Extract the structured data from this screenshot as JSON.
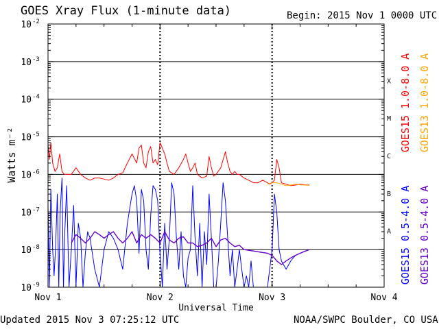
{
  "header": {
    "title": "GOES Xray Flux (1-minute data)",
    "begin": "Begin:  2015 Nov 1 0000 UTC"
  },
  "footer": {
    "updated": "Updated 2015 Nov  3 07:25:12 UTC",
    "credit": "NOAA/SWPC Boulder, CO USA"
  },
  "chart_data": {
    "type": "line",
    "title": "GOES Xray Flux (1-minute data)",
    "xlabel": "Universal Time",
    "ylabel": "Watts m⁻²",
    "yscale": "log",
    "ylim": [
      1e-09,
      0.01
    ],
    "xlim": [
      0,
      72
    ],
    "x_unit": "hours since 2015 Nov 1 0000 UTC",
    "x_ticks": [
      {
        "x": 0,
        "label": "Nov 1"
      },
      {
        "x": 24,
        "label": "Nov 2"
      },
      {
        "x": 48,
        "label": "Nov 3"
      },
      {
        "x": 72,
        "label": "Nov 4"
      }
    ],
    "y_ticks": [
      {
        "exp": -9,
        "label": "10",
        "sup": "-9"
      },
      {
        "exp": -8,
        "label": "10",
        "sup": "-8"
      },
      {
        "exp": -7,
        "label": "10",
        "sup": "-7"
      },
      {
        "exp": -6,
        "label": "10",
        "sup": "-6"
      },
      {
        "exp": -5,
        "label": "10",
        "sup": "-5"
      },
      {
        "exp": -4,
        "label": "10",
        "sup": "-4"
      },
      {
        "exp": -3,
        "label": "10",
        "sup": "-3"
      },
      {
        "exp": -2,
        "label": "10",
        "sup": "-2"
      }
    ],
    "flare_classes": [
      {
        "label": "A",
        "value": 3.16e-08
      },
      {
        "label": "B",
        "value": 3.16e-07
      },
      {
        "label": "C",
        "value": 3.16e-06
      },
      {
        "label": "M",
        "value": 3.16e-05
      },
      {
        "label": "X",
        "value": 0.000316
      }
    ],
    "grid": "horizontal at each decade; dotted vertical at day boundaries",
    "legend_placement": "right, vertical",
    "series": [
      {
        "name": "GOES15 1.0-8.0 A",
        "color": "#ff0000",
        "width": 1,
        "x": [
          0,
          0.3,
          0.6,
          1,
          1.5,
          2,
          2.5,
          3,
          3.5,
          4,
          5,
          6,
          7,
          8,
          9,
          10,
          11,
          12,
          13,
          14,
          15,
          16,
          17,
          18,
          19,
          19.5,
          20,
          20.5,
          21,
          21.5,
          22,
          22.5,
          23,
          23.5,
          24,
          24.5,
          25,
          25.5,
          26,
          27,
          28,
          29,
          29.5,
          30,
          30.5,
          31,
          31.5,
          32,
          33,
          34,
          34.5,
          35,
          35.5,
          36,
          37,
          38,
          38.5,
          39,
          39.5,
          40,
          40.5,
          41,
          42,
          43,
          44,
          45,
          46,
          47,
          47.5,
          48,
          48.5,
          49,
          49.5,
          50,
          51,
          52,
          53,
          54,
          55,
          56
        ],
        "y": [
          6e-06,
          2.5e-06,
          7e-06,
          2e-06,
          1.2e-06,
          1.5e-06,
          3.5e-06,
          1.2e-06,
          1e-06,
          1e-06,
          1e-06,
          1.5e-06,
          1e-06,
          8e-07,
          7e-07,
          8e-07,
          8e-07,
          7.5e-07,
          7e-07,
          8e-07,
          1e-06,
          1.1e-06,
          2e-06,
          3.5e-06,
          2e-06,
          5e-06,
          6e-06,
          2e-06,
          1.5e-06,
          4e-06,
          5.5e-06,
          2e-06,
          2.5e-06,
          1.8e-06,
          7e-06,
          5e-06,
          3.5e-06,
          2e-06,
          1.2e-06,
          1e-06,
          1.5e-06,
          2.5e-06,
          3.5e-06,
          2e-06,
          1.2e-06,
          1.5e-06,
          2e-06,
          1e-06,
          8e-07,
          9e-07,
          3e-06,
          1.5e-06,
          9e-07,
          1e-06,
          1.5e-06,
          4e-06,
          2e-06,
          1.2e-06,
          1e-06,
          1.2e-06,
          1e-06,
          1e-06,
          8e-07,
          7e-07,
          6e-07,
          6e-07,
          7e-07,
          6e-07,
          5.5e-07,
          6e-07,
          7e-07,
          2.5e-06,
          1.5e-06,
          6e-07,
          5.5e-07,
          5e-07,
          5.2e-07,
          5.5e-07,
          5.3e-07,
          5.2e-07
        ]
      },
      {
        "name": "GOES13 1.0-8.0 A",
        "color": "#ffa500",
        "width": 1,
        "x": [
          47,
          48,
          49,
          50,
          51,
          52,
          53,
          54,
          55,
          56
        ],
        "y": [
          5.5e-07,
          6e-07,
          6e-07,
          5.5e-07,
          5e-07,
          5.2e-07,
          5.5e-07,
          5.3e-07,
          5.2e-07,
          5.1e-07
        ]
      },
      {
        "name": "GOES15 0.5-4.0 A",
        "color": "#0000ff",
        "width": 1,
        "x": [
          0,
          0.3,
          0.6,
          1,
          1.3,
          1.6,
          2,
          2.3,
          2.6,
          3,
          3.3,
          3.6,
          4,
          4.5,
          5,
          5.5,
          6,
          6.5,
          7,
          7.5,
          8,
          8.5,
          9,
          10,
          11,
          12,
          13,
          14,
          15,
          16,
          17,
          18,
          18.5,
          19,
          19.5,
          20,
          20.5,
          21,
          21.5,
          22,
          22.5,
          23,
          23.5,
          24,
          24.5,
          25,
          25.5,
          26,
          26.5,
          27,
          27.5,
          28,
          28.5,
          29,
          29.5,
          30,
          30.5,
          31,
          31.5,
          32,
          32.5,
          33,
          33.5,
          34,
          34.5,
          35,
          35.5,
          36,
          36.5,
          37,
          37.5,
          38,
          38.5,
          39,
          39.5,
          40,
          40.5,
          41,
          41.5,
          42,
          42.5,
          43,
          43.5,
          44,
          45,
          46,
          47,
          48,
          48.5,
          49,
          49.5,
          50,
          51,
          52,
          53,
          54,
          55,
          56
        ],
        "y": [
          1.5e-07,
          1e-09,
          4e-07,
          1e-08,
          2e-09,
          1e-08,
          3e-07,
          1e-09,
          1e-07,
          8e-07,
          1e-09,
          3e-08,
          5e-07,
          1e-09,
          1e-08,
          1.5e-07,
          1e-09,
          5e-08,
          2e-08,
          1e-09,
          8e-09,
          3e-08,
          2e-08,
          3e-09,
          1e-09,
          1e-08,
          3e-08,
          2e-08,
          1e-08,
          3e-09,
          5e-08,
          3e-07,
          5e-07,
          2e-07,
          8e-09,
          4e-07,
          2e-07,
          1e-08,
          3e-09,
          8e-08,
          5e-07,
          4e-07,
          2e-07,
          8e-09,
          1e-09,
          5e-08,
          3e-09,
          2e-08,
          6e-07,
          3e-07,
          2e-08,
          3e-09,
          3e-08,
          2e-09,
          1e-09,
          6e-09,
          1e-08,
          5e-07,
          2e-08,
          2e-09,
          5e-08,
          1e-09,
          3e-08,
          4e-09,
          3e-07,
          2e-08,
          1e-09,
          1e-09,
          5e-09,
          5e-08,
          6e-07,
          2e-07,
          2e-08,
          2e-09,
          1e-08,
          1e-09,
          3e-09,
          1e-08,
          3e-09,
          1e-09,
          2e-09,
          1e-09,
          5e-09,
          1e-09,
          1e-09,
          1e-09,
          1e-09,
          1e-08,
          3e-07,
          1e-07,
          1e-08,
          5e-09,
          3e-09,
          5e-09,
          7e-09,
          8e-09,
          9e-09,
          1e-08
        ]
      },
      {
        "name": "GOES13 0.5-4.0 A",
        "color": "#6600cc",
        "width": 1.4,
        "x": [
          5,
          6,
          7,
          8,
          9,
          10,
          11,
          12,
          13,
          14,
          15,
          16,
          17,
          18,
          19,
          20,
          21,
          22,
          23,
          24,
          25,
          26,
          27,
          28,
          29,
          30,
          31,
          32,
          33,
          34,
          35,
          36,
          37,
          38,
          39,
          40,
          41,
          42,
          47,
          48,
          49,
          50,
          51,
          52,
          53,
          54,
          55,
          56
        ],
        "y": [
          1.5e-08,
          2.5e-08,
          2e-08,
          1.5e-08,
          2e-08,
          3e-08,
          2.5e-08,
          2e-08,
          2.5e-08,
          3e-08,
          2e-08,
          1.5e-08,
          2e-08,
          3e-08,
          1.5e-08,
          2.5e-08,
          2e-08,
          2.5e-08,
          2e-08,
          1.5e-08,
          3e-08,
          1.8e-08,
          1.5e-08,
          2e-08,
          2.2e-08,
          1.5e-08,
          1.5e-08,
          1.2e-08,
          1.3e-08,
          1.5e-08,
          2e-08,
          1.2e-08,
          1.8e-08,
          2e-08,
          1.5e-08,
          1.2e-08,
          1.3e-08,
          1e-08,
          8e-09,
          7e-09,
          5e-09,
          4e-09,
          5e-09,
          6e-09,
          7e-09,
          8e-09,
          9e-09,
          1e-08
        ]
      }
    ]
  }
}
